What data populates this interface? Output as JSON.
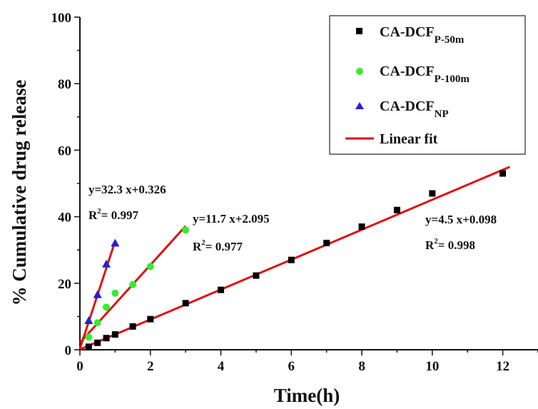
{
  "chart_data": {
    "type": "scatter",
    "xlabel": "Time(h)",
    "ylabel": "% Cumulative drug release",
    "xlim": [
      0,
      13
    ],
    "ylim": [
      0,
      100
    ],
    "xticks": [
      0,
      2,
      4,
      6,
      8,
      10,
      12
    ],
    "yticks": [
      0,
      20,
      40,
      60,
      80,
      100
    ],
    "grid": false,
    "legend_position": "top-right",
    "series": [
      {
        "name": "CA-DCF",
        "name_sub": "P-50m",
        "marker": "square",
        "color": "#000000",
        "x": [
          0.25,
          0.5,
          0.75,
          1,
          1.5,
          2,
          3,
          4,
          5,
          6,
          7,
          8,
          9,
          10,
          12
        ],
        "y": [
          0.9,
          2.1,
          3.5,
          4.6,
          7.0,
          9.2,
          14.0,
          18.0,
          22.3,
          27.0,
          32.1,
          37.0,
          42.0,
          47.0,
          53.0
        ]
      },
      {
        "name": "CA-DCF",
        "name_sub": "P-100m",
        "marker": "circle",
        "color": "#33ee33",
        "x": [
          0.25,
          0.5,
          0.75,
          1,
          1.5,
          2,
          3
        ],
        "y": [
          3.8,
          8.1,
          12.8,
          17.0,
          19.6,
          25.0,
          36.0
        ]
      },
      {
        "name": "CA-DCF",
        "name_sub": "NP",
        "marker": "triangle",
        "color": "#2222cc",
        "x": [
          0.25,
          0.5,
          0.75,
          1
        ],
        "y": [
          8.8,
          16.6,
          25.8,
          32.1
        ]
      }
    ],
    "fits": [
      {
        "label": "Linear fit",
        "color": "#dd1111",
        "slope": 4.5,
        "intercept": 0.098,
        "x_range": [
          0,
          12.2
        ]
      },
      {
        "label": "Linear fit",
        "color": "#dd1111",
        "slope": 11.7,
        "intercept": 2.095,
        "x_range": [
          0,
          3.0
        ]
      },
      {
        "label": "Linear fit",
        "color": "#dd1111",
        "slope": 32.3,
        "intercept": 0.326,
        "x_range": [
          0,
          1.0
        ]
      }
    ],
    "legend_fit_label": "Linear fit",
    "annotations": [
      {
        "equation": "y=32.3 x+0.326",
        "r2_prefix": "R",
        "r2_sup": "2",
        "r2_value": "= 0.997"
      },
      {
        "equation": "y=11.7 x+2.095",
        "r2_prefix": "R",
        "r2_sup": "2",
        "r2_value": "= 0.977"
      },
      {
        "equation": "y=4.5 x+0.098",
        "r2_prefix": "R",
        "r2_sup": "2",
        "r2_value": "= 0.998"
      }
    ]
  }
}
